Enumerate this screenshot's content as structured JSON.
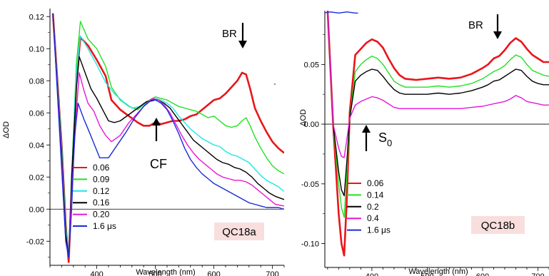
{
  "chart_data": [
    {
      "type": "line",
      "panel_label": "QC18a",
      "xlabel": "Wavelength (nm)",
      "ylabel": "ΔOD",
      "xlim": [
        320,
        720
      ],
      "ylim": [
        -0.035,
        0.125
      ],
      "xticks": [
        400,
        500,
        600,
        700
      ],
      "xtick_labels": [
        "400",
        "500",
        "600",
        "700"
      ],
      "yticks": [
        -0.02,
        0.0,
        0.02,
        0.04,
        0.06,
        0.08,
        0.1,
        0.12
      ],
      "ytick_labels": [
        "-0.02",
        "0.00",
        "0.02",
        "0.04",
        "0.06",
        "0.08",
        "0.10",
        "0.12"
      ],
      "annotations": [
        {
          "text": "BR",
          "arrow": "down",
          "x": 650,
          "y": 0.092
        },
        {
          "text": "CF",
          "arrow": "up",
          "x": 510,
          "y": 0.052
        }
      ],
      "legend_position": "bottom-left",
      "series": [
        {
          "name": "0.06",
          "color": "#e8161b",
          "width": 2.6,
          "x": [
            325,
            340,
            347,
            352,
            357,
            365,
            372,
            385,
            400,
            415,
            425,
            440,
            455,
            470,
            480,
            490,
            500,
            510,
            520,
            530,
            540,
            550,
            560,
            570,
            580,
            590,
            600,
            610,
            620,
            630,
            640,
            648,
            655,
            662,
            670,
            680,
            690,
            700,
            710,
            720
          ],
          "y": [
            0.122,
            0.04,
            -0.01,
            -0.033,
            0.01,
            0.08,
            0.107,
            0.102,
            0.093,
            0.083,
            0.068,
            0.062,
            0.058,
            0.054,
            0.052,
            0.052,
            0.054,
            0.053,
            0.054,
            0.055,
            0.055,
            0.056,
            0.058,
            0.059,
            0.062,
            0.065,
            0.068,
            0.069,
            0.072,
            0.076,
            0.08,
            0.085,
            0.084,
            0.075,
            0.063,
            0.055,
            0.048,
            0.042,
            0.038,
            0.035
          ]
        },
        {
          "name": "0.09",
          "color": "#22e022",
          "width": 1.4,
          "x": [
            325,
            340,
            347,
            352,
            357,
            365,
            372,
            385,
            400,
            415,
            425,
            440,
            455,
            470,
            480,
            490,
            500,
            510,
            520,
            530,
            540,
            550,
            560,
            570,
            580,
            590,
            600,
            610,
            620,
            630,
            640,
            648,
            655,
            662,
            670,
            680,
            690,
            700,
            710,
            720
          ],
          "y": [
            0.122,
            0.04,
            -0.01,
            -0.03,
            0.02,
            0.09,
            0.117,
            0.106,
            0.1,
            0.089,
            0.076,
            0.068,
            0.064,
            0.062,
            0.065,
            0.068,
            0.07,
            0.069,
            0.068,
            0.066,
            0.064,
            0.063,
            0.062,
            0.061,
            0.059,
            0.057,
            0.058,
            0.055,
            0.052,
            0.051,
            0.052,
            0.055,
            0.057,
            0.052,
            0.045,
            0.038,
            0.032,
            0.027,
            0.024,
            0.022
          ]
        },
        {
          "name": "0.12",
          "color": "#1ee6e6",
          "width": 1.4,
          "x": [
            325,
            340,
            347,
            352,
            357,
            365,
            372,
            385,
            400,
            415,
            430,
            445,
            460,
            475,
            490,
            500,
            510,
            520,
            530,
            540,
            550,
            560,
            570,
            580,
            590,
            600,
            610,
            620,
            630,
            640,
            650,
            660,
            670,
            680,
            690,
            700,
            710,
            720
          ],
          "y": [
            0.122,
            0.04,
            -0.012,
            -0.028,
            0.02,
            0.085,
            0.108,
            0.1,
            0.09,
            0.079,
            0.072,
            0.067,
            0.063,
            0.064,
            0.067,
            0.069,
            0.068,
            0.066,
            0.063,
            0.058,
            0.054,
            0.05,
            0.047,
            0.044,
            0.042,
            0.04,
            0.039,
            0.036,
            0.034,
            0.033,
            0.031,
            0.029,
            0.025,
            0.021,
            0.018,
            0.016,
            0.014,
            0.011
          ]
        },
        {
          "name": "0.16",
          "color": "#000000",
          "width": 1.4,
          "x": [
            325,
            340,
            347,
            352,
            357,
            365,
            370,
            380,
            390,
            400,
            410,
            420,
            430,
            440,
            455,
            470,
            485,
            495,
            505,
            515,
            525,
            535,
            545,
            555,
            565,
            575,
            585,
            595,
            605,
            615,
            625,
            635,
            645,
            655,
            665,
            675,
            685,
            695,
            705,
            720
          ],
          "y": [
            0.122,
            0.035,
            -0.015,
            -0.03,
            0.02,
            0.075,
            0.095,
            0.085,
            0.075,
            0.069,
            0.062,
            0.055,
            0.054,
            0.055,
            0.059,
            0.063,
            0.067,
            0.068,
            0.068,
            0.066,
            0.063,
            0.058,
            0.053,
            0.048,
            0.043,
            0.04,
            0.037,
            0.034,
            0.031,
            0.029,
            0.028,
            0.026,
            0.025,
            0.023,
            0.02,
            0.016,
            0.013,
            0.01,
            0.008,
            0.006
          ]
        },
        {
          "name": "0.20",
          "color": "#e617d6",
          "width": 1.4,
          "x": [
            325,
            340,
            347,
            352,
            357,
            365,
            370,
            378,
            385,
            395,
            405,
            415,
            425,
            440,
            455,
            470,
            485,
            495,
            505,
            515,
            525,
            535,
            545,
            555,
            565,
            575,
            585,
            595,
            605,
            615,
            625,
            635,
            645,
            655,
            665,
            675,
            685,
            695,
            705,
            720
          ],
          "y": [
            0.122,
            0.03,
            -0.02,
            -0.03,
            0.01,
            0.06,
            0.085,
            0.074,
            0.066,
            0.061,
            0.052,
            0.046,
            0.042,
            0.046,
            0.054,
            0.06,
            0.066,
            0.069,
            0.068,
            0.065,
            0.06,
            0.053,
            0.046,
            0.04,
            0.035,
            0.031,
            0.028,
            0.025,
            0.022,
            0.02,
            0.019,
            0.018,
            0.018,
            0.017,
            0.015,
            0.012,
            0.009,
            0.006,
            0.003,
            0.002
          ]
        },
        {
          "name": "1.6 μs",
          "color": "#1a2bd6",
          "width": 1.4,
          "x": [
            325,
            340,
            347,
            352,
            357,
            362,
            368,
            372,
            378,
            385,
            395,
            405,
            420,
            435,
            450,
            465,
            480,
            490,
            500,
            510,
            520,
            530,
            540,
            550,
            560,
            570,
            580,
            590,
            600,
            610,
            620,
            630,
            640,
            650,
            660,
            670,
            680,
            690,
            700,
            710,
            720
          ],
          "y": [
            0.122,
            0.025,
            -0.02,
            -0.03,
            0.0,
            0.045,
            0.066,
            0.062,
            0.056,
            0.05,
            0.041,
            0.032,
            0.032,
            0.04,
            0.048,
            0.057,
            0.064,
            0.067,
            0.068,
            0.066,
            0.062,
            0.055,
            0.047,
            0.038,
            0.031,
            0.026,
            0.022,
            0.019,
            0.016,
            0.014,
            0.012,
            0.01,
            0.008,
            0.006,
            0.004,
            0.003,
            0.002,
            0.001,
            0.001,
            0.001,
            0.0
          ]
        }
      ]
    },
    {
      "type": "line",
      "panel_label": "QC18b",
      "xlabel": "Wavelength (nm)",
      "ylabel": "ΔOD",
      "xlim": [
        315,
        720
      ],
      "ylim": [
        -0.12,
        0.095
      ],
      "xticks": [
        400,
        500,
        600,
        700
      ],
      "xtick_labels": [
        "400",
        "500",
        "600",
        "700"
      ],
      "yticks": [
        -0.1,
        -0.05,
        0.0,
        0.05
      ],
      "ytick_labels": [
        "-0.10",
        "-0.05",
        "0.00",
        "0.05"
      ],
      "annotations": [
        {
          "text": "BR",
          "arrow": "down",
          "x": 625,
          "y": 0.062
        },
        {
          "text": "S",
          "subscript": "0",
          "arrow": "up",
          "x": 370,
          "y": -0.016
        }
      ],
      "legend_position": "bottom-left",
      "series": [
        {
          "name": "0.06",
          "color": "#e8161b",
          "width": 2.6,
          "x": [
            320,
            330,
            340,
            345,
            350,
            355,
            360,
            370,
            380,
            390,
            400,
            410,
            420,
            430,
            440,
            450,
            460,
            480,
            500,
            520,
            540,
            560,
            580,
            600,
            610,
            620,
            630,
            640,
            650,
            660,
            670,
            680,
            690,
            700,
            710,
            720
          ],
          "y": [
            0.095,
            0.0,
            -0.075,
            -0.1,
            -0.11,
            -0.06,
            0.01,
            0.058,
            0.063,
            0.068,
            0.071,
            0.069,
            0.064,
            0.055,
            0.047,
            0.041,
            0.038,
            0.037,
            0.038,
            0.039,
            0.038,
            0.039,
            0.042,
            0.047,
            0.05,
            0.055,
            0.057,
            0.062,
            0.068,
            0.072,
            0.069,
            0.063,
            0.058,
            0.055,
            0.052,
            0.052
          ]
        },
        {
          "name": "0.14",
          "color": "#22e022",
          "width": 1.4,
          "x": [
            320,
            330,
            340,
            345,
            350,
            355,
            360,
            370,
            380,
            390,
            400,
            410,
            420,
            430,
            440,
            450,
            460,
            480,
            500,
            520,
            540,
            560,
            580,
            600,
            610,
            620,
            630,
            640,
            650,
            660,
            670,
            680,
            690,
            700,
            710,
            720
          ],
          "y": [
            0.095,
            0.0,
            -0.05,
            -0.07,
            -0.078,
            -0.04,
            0.005,
            0.044,
            0.05,
            0.054,
            0.057,
            0.055,
            0.05,
            0.043,
            0.036,
            0.033,
            0.031,
            0.031,
            0.031,
            0.032,
            0.031,
            0.032,
            0.034,
            0.038,
            0.041,
            0.044,
            0.046,
            0.049,
            0.054,
            0.058,
            0.056,
            0.05,
            0.045,
            0.043,
            0.041,
            0.04
          ]
        },
        {
          "name": "0.2",
          "color": "#000000",
          "width": 1.4,
          "x": [
            320,
            330,
            340,
            345,
            350,
            355,
            360,
            370,
            380,
            390,
            400,
            410,
            420,
            430,
            440,
            450,
            460,
            480,
            500,
            520,
            540,
            560,
            580,
            600,
            610,
            620,
            630,
            640,
            650,
            660,
            670,
            680,
            690,
            700,
            710,
            720
          ],
          "y": [
            0.095,
            0.0,
            -0.04,
            -0.055,
            -0.06,
            -0.03,
            0.005,
            0.036,
            0.041,
            0.044,
            0.046,
            0.045,
            0.04,
            0.034,
            0.029,
            0.026,
            0.025,
            0.025,
            0.025,
            0.026,
            0.025,
            0.026,
            0.028,
            0.031,
            0.033,
            0.036,
            0.037,
            0.04,
            0.043,
            0.046,
            0.045,
            0.04,
            0.036,
            0.034,
            0.033,
            0.033
          ]
        },
        {
          "name": "0.4",
          "color": "#e617d6",
          "width": 1.4,
          "x": [
            320,
            330,
            340,
            345,
            350,
            355,
            360,
            370,
            380,
            390,
            400,
            410,
            420,
            430,
            440,
            450,
            460,
            480,
            500,
            520,
            540,
            560,
            580,
            600,
            620,
            640,
            650,
            660,
            670,
            680,
            690,
            700,
            710,
            720
          ],
          "y": [
            0.095,
            0.0,
            -0.02,
            -0.027,
            -0.028,
            -0.012,
            0.005,
            0.016,
            0.019,
            0.021,
            0.023,
            0.022,
            0.02,
            0.017,
            0.014,
            0.013,
            0.013,
            0.013,
            0.013,
            0.013,
            0.013,
            0.013,
            0.014,
            0.015,
            0.017,
            0.019,
            0.021,
            0.024,
            0.022,
            0.019,
            0.018,
            0.017,
            0.016,
            0.016
          ]
        },
        {
          "name": "1.6 μs",
          "color": "#1a2bd6",
          "width": 1.4,
          "x": [
            312,
            325,
            340,
            355,
            370,
            375
          ],
          "y": [
            0.093,
            0.094,
            0.093,
            0.094,
            0.093,
            0.093
          ]
        }
      ]
    }
  ]
}
